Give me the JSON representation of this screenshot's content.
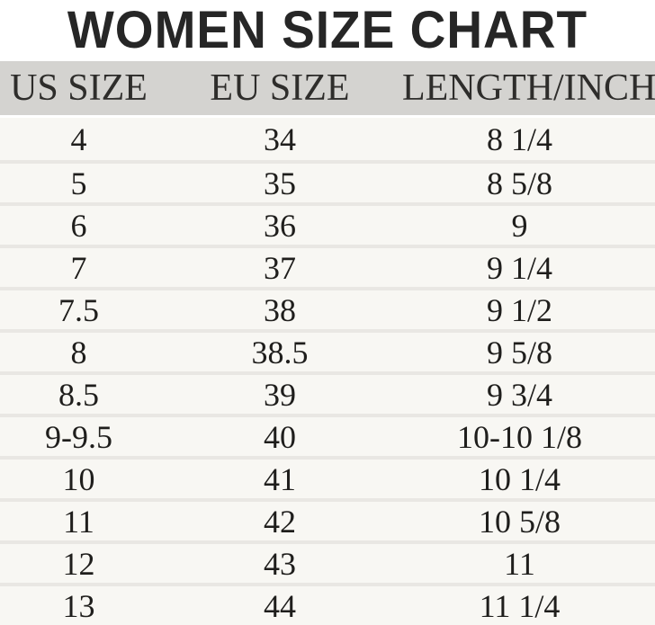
{
  "title": "WOMEN SIZE CHART",
  "chart_data": {
    "type": "table",
    "title": "WOMEN SIZE CHART",
    "columns": [
      "US SIZE",
      "EU SIZE",
      "LENGTH/INCH"
    ],
    "rows": [
      [
        "4",
        "34",
        "8 1/4"
      ],
      [
        "5",
        "35",
        "8 5/8"
      ],
      [
        "6",
        "36",
        "9"
      ],
      [
        "7",
        "37",
        "9 1/4"
      ],
      [
        "7.5",
        "38",
        "9 1/2"
      ],
      [
        "8",
        "38.5",
        "9 5/8"
      ],
      [
        "8.5",
        "39",
        "9 3/4"
      ],
      [
        "9-9.5",
        "40",
        "10-10 1/8"
      ],
      [
        "10",
        "41",
        "10 1/4"
      ],
      [
        "11",
        "42",
        "10 5/8"
      ],
      [
        "12",
        "43",
        "11"
      ],
      [
        "13",
        "44",
        "11 1/4"
      ]
    ],
    "layout_hints": {
      "header_position": "top",
      "grid": "horizontal-dividers-only",
      "column_alignment": [
        "center",
        "center",
        "center"
      ]
    }
  },
  "colors": {
    "page_bg": "#ffffff",
    "title_text": "#262626",
    "header_bg": "#d4d3d0",
    "header_text": "#2e2d2b",
    "row_bg": "#f8f7f3",
    "row_divider": "#e9e7e3",
    "cell_text": "#1f1e1c"
  }
}
